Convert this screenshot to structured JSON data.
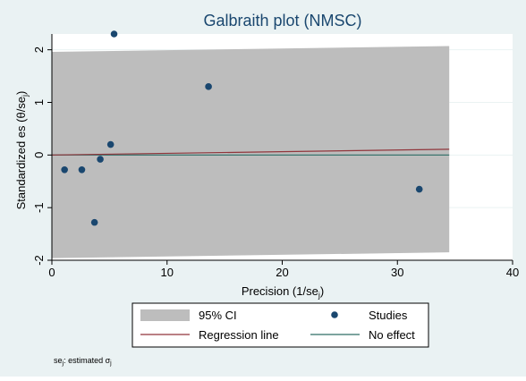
{
  "colors": {
    "background": "#eaf2f3",
    "plot_background": "#ffffff",
    "ci_band": "#bdbdbd",
    "points": "#1a476f",
    "regression_line": "#90353b",
    "no_effect_line": "#2d6d66",
    "grid": "#eaf2f3",
    "axis": "#000000"
  },
  "chart_data": {
    "type": "scatter",
    "title": "Galbraith plot (NMSC)",
    "xlabel": "Precision (1/se",
    "xlabel_sub": "j",
    "xlabel_close": ")",
    "ylabel": "Standardized es  (θ/se",
    "ylabel_sub": "j",
    "ylabel_close": ")",
    "xlim": [
      0,
      40
    ],
    "ylim": [
      -2,
      2.3
    ],
    "xticks": [
      0,
      10,
      20,
      30,
      40
    ],
    "yticks": [
      -2,
      -1,
      0,
      1,
      2
    ],
    "xtick_labels": [
      "0",
      "10",
      "20",
      "30",
      "40"
    ],
    "ytick_labels": [
      "-2",
      "-1",
      "0",
      "1",
      "2"
    ],
    "grid": true,
    "legend_position": "bottom",
    "series": [
      {
        "name": "Studies",
        "kind": "scatter",
        "x": [
          1.1,
          2.6,
          3.7,
          4.2,
          5.1,
          5.4,
          13.6,
          31.9
        ],
        "y": [
          -0.28,
          -0.28,
          -1.28,
          -0.08,
          0.2,
          2.3,
          1.3,
          -0.65
        ]
      },
      {
        "name": "Regression line",
        "kind": "line",
        "x": [
          0,
          34.5
        ],
        "y": [
          0,
          0.11
        ]
      },
      {
        "name": "No effect",
        "kind": "line",
        "x": [
          0,
          34.5
        ],
        "y": [
          0,
          0
        ]
      },
      {
        "name": "95% CI",
        "kind": "band",
        "x": [
          0,
          34.5
        ],
        "lower": [
          -1.96,
          -1.85
        ],
        "upper": [
          1.96,
          2.07
        ]
      }
    ],
    "legend": [
      {
        "label": "95% CI",
        "symbol": "band"
      },
      {
        "label": "Studies",
        "symbol": "point"
      },
      {
        "label": "Regression line",
        "symbol": "regression"
      },
      {
        "label": "No effect",
        "symbol": "noeffect"
      }
    ],
    "note": {
      "prefix": "se",
      "sub": "j",
      "mid": ": estimated σ",
      "sub2": "j"
    }
  }
}
